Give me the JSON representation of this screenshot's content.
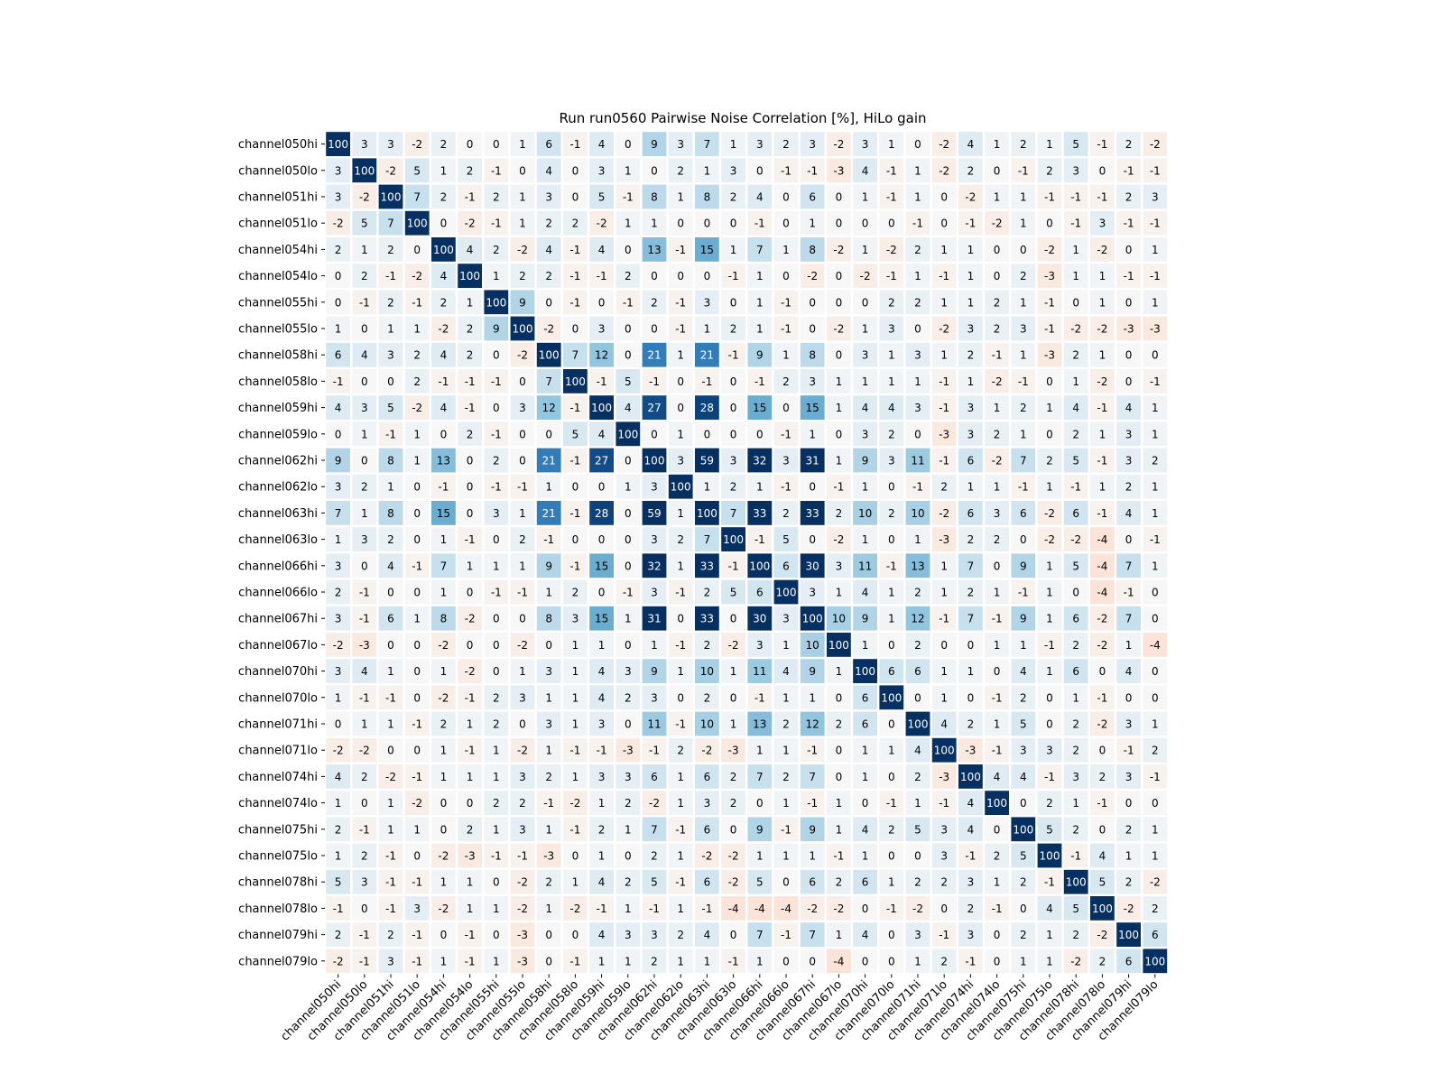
{
  "chart_data": {
    "type": "heatmap",
    "title": "Run run0560 Pairwise Noise Correlation [%], HiLo gain",
    "colormap": "RdBu",
    "vmin": -100,
    "vmax": 100,
    "labels": [
      "channel050hi",
      "channel050lo",
      "channel051hi",
      "channel051lo",
      "channel054hi",
      "channel054lo",
      "channel055hi",
      "channel055lo",
      "channel058hi",
      "channel058lo",
      "channel059hi",
      "channel059lo",
      "channel062hi",
      "channel062lo",
      "channel063hi",
      "channel063lo",
      "channel066hi",
      "channel066lo",
      "channel067hi",
      "channel067lo",
      "channel070hi",
      "channel070lo",
      "channel071hi",
      "channel071lo",
      "channel074hi",
      "channel074lo",
      "channel075hi",
      "channel075lo",
      "channel078hi",
      "channel078lo",
      "channel079hi",
      "channel079lo"
    ],
    "matrix": [
      [
        100,
        3,
        3,
        -2,
        2,
        0,
        0,
        1,
        6,
        -1,
        4,
        0,
        9,
        3,
        7,
        1,
        3,
        2,
        3,
        -2,
        3,
        1,
        0,
        -2,
        4,
        1,
        2,
        1,
        5,
        -1,
        2,
        -2
      ],
      [
        3,
        100,
        -2,
        5,
        1,
        2,
        -1,
        0,
        4,
        0,
        3,
        1,
        0,
        2,
        1,
        3,
        0,
        -1,
        -1,
        -3,
        4,
        -1,
        1,
        -2,
        2,
        0,
        -1,
        2,
        3,
        0,
        -1,
        -1
      ],
      [
        3,
        -2,
        100,
        7,
        2,
        -1,
        2,
        1,
        3,
        0,
        5,
        -1,
        8,
        1,
        8,
        2,
        4,
        0,
        6,
        0,
        1,
        -1,
        1,
        0,
        -2,
        1,
        1,
        -1,
        -1,
        -1,
        2,
        3
      ],
      [
        -2,
        5,
        7,
        100,
        0,
        -2,
        -1,
        1,
        2,
        2,
        -2,
        1,
        1,
        0,
        0,
        0,
        -1,
        0,
        1,
        0,
        0,
        0,
        -1,
        0,
        -1,
        -2,
        1,
        0,
        -1,
        3,
        -1,
        -1
      ],
      [
        2,
        1,
        2,
        0,
        100,
        4,
        2,
        -2,
        4,
        -1,
        4,
        0,
        13,
        -1,
        15,
        1,
        7,
        1,
        8,
        -2,
        1,
        -2,
        2,
        1,
        1,
        0,
        0,
        -2,
        1,
        -2,
        0,
        1
      ],
      [
        0,
        2,
        -1,
        -2,
        4,
        100,
        1,
        2,
        2,
        -1,
        -1,
        2,
        0,
        0,
        0,
        -1,
        1,
        0,
        -2,
        0,
        -2,
        -1,
        1,
        -1,
        1,
        0,
        2,
        -3,
        1,
        1,
        -1,
        -1
      ],
      [
        0,
        -1,
        2,
        -1,
        2,
        1,
        100,
        9,
        0,
        -1,
        0,
        -1,
        2,
        -1,
        3,
        0,
        1,
        -1,
        0,
        0,
        0,
        2,
        2,
        1,
        1,
        2,
        1,
        -1,
        0,
        1,
        0,
        1
      ],
      [
        1,
        0,
        1,
        1,
        -2,
        2,
        9,
        100,
        -2,
        0,
        3,
        0,
        0,
        -1,
        1,
        2,
        1,
        -1,
        0,
        -2,
        1,
        3,
        0,
        -2,
        3,
        2,
        3,
        -1,
        -2,
        -2,
        -3,
        -3
      ],
      [
        6,
        4,
        3,
        2,
        4,
        2,
        0,
        -2,
        100,
        7,
        12,
        0,
        21,
        1,
        21,
        -1,
        9,
        1,
        8,
        0,
        3,
        1,
        3,
        1,
        2,
        -1,
        1,
        -3,
        2,
        1,
        0,
        0
      ],
      [
        -1,
        0,
        0,
        2,
        -1,
        -1,
        -1,
        0,
        7,
        100,
        -1,
        5,
        -1,
        0,
        -1,
        0,
        -1,
        2,
        3,
        1,
        1,
        1,
        1,
        -1,
        1,
        -2,
        -1,
        0,
        1,
        -2,
        0,
        -1
      ],
      [
        4,
        3,
        5,
        -2,
        4,
        -1,
        0,
        3,
        12,
        -1,
        100,
        4,
        27,
        0,
        28,
        0,
        15,
        0,
        15,
        1,
        4,
        4,
        3,
        -1,
        3,
        1,
        2,
        1,
        4,
        -1,
        4,
        1
      ],
      [
        0,
        1,
        -1,
        1,
        0,
        2,
        -1,
        0,
        0,
        5,
        4,
        100,
        0,
        1,
        0,
        0,
        0,
        -1,
        1,
        0,
        3,
        2,
        0,
        -3,
        3,
        2,
        1,
        0,
        2,
        1,
        3,
        1
      ],
      [
        9,
        0,
        8,
        1,
        13,
        0,
        2,
        0,
        21,
        -1,
        27,
        0,
        100,
        3,
        59,
        3,
        32,
        3,
        31,
        1,
        9,
        3,
        11,
        -1,
        6,
        -2,
        7,
        2,
        5,
        -1,
        3,
        2
      ],
      [
        3,
        2,
        1,
        0,
        -1,
        0,
        -1,
        -1,
        1,
        0,
        0,
        1,
        3,
        100,
        1,
        2,
        1,
        -1,
        0,
        -1,
        1,
        0,
        -1,
        2,
        1,
        1,
        -1,
        1,
        -1,
        1,
        2,
        1
      ],
      [
        7,
        1,
        8,
        0,
        15,
        0,
        3,
        1,
        21,
        -1,
        28,
        0,
        59,
        1,
        100,
        7,
        33,
        2,
        33,
        2,
        10,
        2,
        10,
        -2,
        6,
        3,
        6,
        -2,
        6,
        -1,
        4,
        1
      ],
      [
        1,
        3,
        2,
        0,
        1,
        -1,
        0,
        2,
        -1,
        0,
        0,
        0,
        3,
        2,
        7,
        100,
        -1,
        5,
        0,
        -2,
        1,
        0,
        1,
        -3,
        2,
        2,
        0,
        -2,
        -2,
        -4,
        0,
        -1
      ],
      [
        3,
        0,
        4,
        -1,
        7,
        1,
        1,
        1,
        9,
        -1,
        15,
        0,
        32,
        1,
        33,
        -1,
        100,
        6,
        30,
        3,
        11,
        -1,
        13,
        1,
        7,
        0,
        9,
        1,
        5,
        -4,
        7,
        1
      ],
      [
        2,
        -1,
        0,
        0,
        1,
        0,
        -1,
        -1,
        1,
        2,
        0,
        -1,
        3,
        -1,
        2,
        5,
        6,
        100,
        3,
        1,
        4,
        1,
        2,
        1,
        2,
        1,
        -1,
        1,
        0,
        -4,
        -1,
        0
      ],
      [
        3,
        -1,
        6,
        1,
        8,
        -2,
        0,
        0,
        8,
        3,
        15,
        1,
        31,
        0,
        33,
        0,
        30,
        3,
        100,
        10,
        9,
        1,
        12,
        -1,
        7,
        -1,
        9,
        1,
        6,
        -2,
        7,
        0
      ],
      [
        -2,
        -3,
        0,
        0,
        -2,
        0,
        0,
        -2,
        0,
        1,
        1,
        0,
        1,
        -1,
        2,
        -2,
        3,
        1,
        10,
        100,
        1,
        0,
        2,
        0,
        0,
        1,
        1,
        -1,
        2,
        -2,
        1,
        -4
      ],
      [
        3,
        4,
        1,
        0,
        1,
        -2,
        0,
        1,
        3,
        1,
        4,
        3,
        9,
        1,
        10,
        1,
        11,
        4,
        9,
        1,
        100,
        6,
        6,
        1,
        1,
        0,
        4,
        1,
        6,
        0,
        4,
        0
      ],
      [
        1,
        -1,
        -1,
        0,
        -2,
        -1,
        2,
        3,
        1,
        1,
        4,
        2,
        3,
        0,
        2,
        0,
        -1,
        1,
        1,
        0,
        6,
        100,
        0,
        1,
        0,
        -1,
        2,
        0,
        1,
        -1,
        0,
        0
      ],
      [
        0,
        1,
        1,
        -1,
        2,
        1,
        2,
        0,
        3,
        1,
        3,
        0,
        11,
        -1,
        10,
        1,
        13,
        2,
        12,
        2,
        6,
        0,
        100,
        4,
        2,
        1,
        5,
        0,
        2,
        -2,
        3,
        1
      ],
      [
        -2,
        -2,
        0,
        0,
        1,
        -1,
        1,
        -2,
        1,
        -1,
        -1,
        -3,
        -1,
        2,
        -2,
        -3,
        1,
        1,
        -1,
        0,
        1,
        1,
        4,
        100,
        -3,
        -1,
        3,
        3,
        2,
        0,
        -1,
        2
      ],
      [
        4,
        2,
        -2,
        -1,
        1,
        1,
        1,
        3,
        2,
        1,
        3,
        3,
        6,
        1,
        6,
        2,
        7,
        2,
        7,
        0,
        1,
        0,
        2,
        -3,
        100,
        4,
        4,
        -1,
        3,
        2,
        3,
        -1
      ],
      [
        1,
        0,
        1,
        -2,
        0,
        0,
        2,
        2,
        -1,
        -2,
        1,
        2,
        -2,
        1,
        3,
        2,
        0,
        1,
        -1,
        1,
        0,
        -1,
        1,
        -1,
        4,
        100,
        0,
        2,
        1,
        -1,
        0,
        0
      ],
      [
        2,
        -1,
        1,
        1,
        0,
        2,
        1,
        3,
        1,
        -1,
        2,
        1,
        7,
        -1,
        6,
        0,
        9,
        -1,
        9,
        1,
        4,
        2,
        5,
        3,
        4,
        0,
        100,
        5,
        2,
        0,
        2,
        1
      ],
      [
        1,
        2,
        -1,
        0,
        -2,
        -3,
        -1,
        -1,
        -3,
        0,
        1,
        0,
        2,
        1,
        -2,
        -2,
        1,
        1,
        1,
        -1,
        1,
        0,
        0,
        3,
        -1,
        2,
        5,
        100,
        -1,
        4,
        1,
        1
      ],
      [
        5,
        3,
        -1,
        -1,
        1,
        1,
        0,
        -2,
        2,
        1,
        4,
        2,
        5,
        -1,
        6,
        -2,
        5,
        0,
        6,
        2,
        6,
        1,
        2,
        2,
        3,
        1,
        2,
        -1,
        100,
        5,
        2,
        -2
      ],
      [
        -1,
        0,
        -1,
        3,
        -2,
        1,
        1,
        -2,
        1,
        -2,
        -1,
        1,
        -1,
        1,
        -1,
        -4,
        -4,
        -4,
        -2,
        -2,
        0,
        -1,
        -2,
        0,
        2,
        -1,
        0,
        4,
        5,
        100,
        -2,
        2
      ],
      [
        2,
        -1,
        2,
        -1,
        0,
        -1,
        0,
        -3,
        0,
        0,
        4,
        3,
        3,
        2,
        4,
        0,
        7,
        -1,
        7,
        1,
        4,
        0,
        3,
        -1,
        3,
        0,
        2,
        1,
        2,
        -2,
        100,
        6
      ],
      [
        -2,
        -1,
        3,
        -1,
        1,
        -1,
        1,
        -3,
        0,
        -1,
        1,
        1,
        2,
        1,
        1,
        -1,
        1,
        0,
        0,
        -4,
        0,
        0,
        1,
        2,
        -1,
        0,
        1,
        1,
        -2,
        2,
        6,
        100
      ]
    ]
  }
}
